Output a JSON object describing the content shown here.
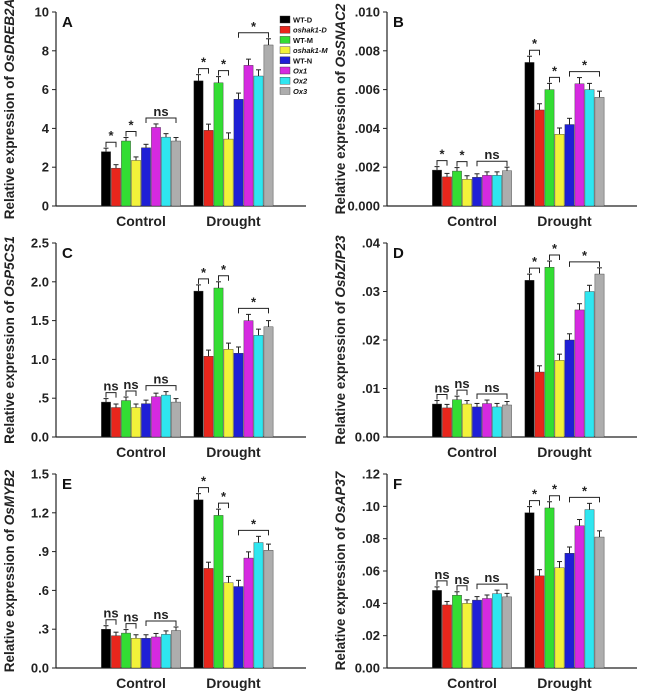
{
  "colors": [
    "#000000",
    "#e8261c",
    "#33dd33",
    "#f2f23a",
    "#1f1fd6",
    "#d52ae0",
    "#2fe6f0",
    "#adadad"
  ],
  "chart_data": [
    {
      "type": "bar",
      "panel": "A",
      "ylabel_prefix": "Relative expression of ",
      "gene": "OsDREB2A",
      "categories": [
        "Control",
        "Drought"
      ],
      "ylim": [
        0,
        10
      ],
      "yticks": [
        "0",
        "2",
        "4",
        "6",
        "8",
        "10"
      ],
      "legend": [
        "WT-D",
        "oshak1-D",
        "WT-M",
        "oshak1-M",
        "WT-N",
        "Ox1",
        "Ox2",
        "Ox3"
      ],
      "series": [
        {
          "name": "WT-D",
          "values": [
            2.8,
            6.45
          ]
        },
        {
          "name": "oshak1-D",
          "values": [
            1.95,
            3.9
          ]
        },
        {
          "name": "WT-M",
          "values": [
            3.35,
            6.35
          ]
        },
        {
          "name": "oshak1-M",
          "values": [
            2.35,
            3.45
          ]
        },
        {
          "name": "WT-N",
          "values": [
            3.0,
            5.5
          ]
        },
        {
          "name": "Ox1",
          "values": [
            4.05,
            7.25
          ]
        },
        {
          "name": "Ox2",
          "values": [
            3.55,
            6.7
          ]
        },
        {
          "name": "Ox3",
          "values": [
            3.35,
            8.3
          ]
        }
      ],
      "significance": [
        {
          "group": 0,
          "pair": "0-1",
          "label": "*"
        },
        {
          "group": 0,
          "pair": "2-3",
          "label": "*"
        },
        {
          "group": 0,
          "pair": "4-7",
          "label": "ns"
        },
        {
          "group": 1,
          "pair": "0-1",
          "label": "*"
        },
        {
          "group": 1,
          "pair": "2-3",
          "label": "*"
        },
        {
          "group": 1,
          "pair": "4-7",
          "label": "*"
        }
      ]
    },
    {
      "type": "bar",
      "panel": "B",
      "ylabel_prefix": "Relative expression of ",
      "gene": "OsSNAC2",
      "categories": [
        "Control",
        "Drought"
      ],
      "ylim": [
        0,
        0.01
      ],
      "yticks": [
        "0.000",
        ".002",
        ".004",
        ".006",
        ".008",
        ".010"
      ],
      "series": [
        {
          "name": "WT-D",
          "values": [
            0.00185,
            0.0074
          ]
        },
        {
          "name": "oshak1-D",
          "values": [
            0.0015,
            0.00495
          ]
        },
        {
          "name": "WT-M",
          "values": [
            0.0018,
            0.006
          ]
        },
        {
          "name": "oshak1-M",
          "values": [
            0.00138,
            0.0037
          ]
        },
        {
          "name": "WT-N",
          "values": [
            0.00148,
            0.0042
          ]
        },
        {
          "name": "Ox1",
          "values": [
            0.00158,
            0.0063
          ]
        },
        {
          "name": "Ox2",
          "values": [
            0.00158,
            0.006
          ]
        },
        {
          "name": "Ox3",
          "values": [
            0.00182,
            0.0056
          ]
        }
      ],
      "significance": [
        {
          "group": 0,
          "pair": "0-1",
          "label": "*"
        },
        {
          "group": 0,
          "pair": "2-3",
          "label": "*"
        },
        {
          "group": 0,
          "pair": "4-7",
          "label": "ns"
        },
        {
          "group": 1,
          "pair": "0-1",
          "label": "*"
        },
        {
          "group": 1,
          "pair": "2-3",
          "label": "*"
        },
        {
          "group": 1,
          "pair": "4-7",
          "label": "*"
        }
      ]
    },
    {
      "type": "bar",
      "panel": "C",
      "ylabel_prefix": "Relative expression of ",
      "gene": "OsP5CS1",
      "categories": [
        "Control",
        "Drought"
      ],
      "ylim": [
        0,
        2.5
      ],
      "yticks": [
        "0.0",
        ".5",
        "1.0",
        "1.5",
        "2.0",
        "2.5"
      ],
      "series": [
        {
          "name": "WT-D",
          "values": [
            0.45,
            1.88
          ]
        },
        {
          "name": "oshak1-D",
          "values": [
            0.38,
            1.04
          ]
        },
        {
          "name": "WT-M",
          "values": [
            0.47,
            1.92
          ]
        },
        {
          "name": "oshak1-M",
          "values": [
            0.38,
            1.13
          ]
        },
        {
          "name": "WT-N",
          "values": [
            0.43,
            1.08
          ]
        },
        {
          "name": "Ox1",
          "values": [
            0.52,
            1.5
          ]
        },
        {
          "name": "Ox2",
          "values": [
            0.54,
            1.31
          ]
        },
        {
          "name": "Ox3",
          "values": [
            0.45,
            1.42
          ]
        }
      ],
      "significance": [
        {
          "group": 0,
          "pair": "0-1",
          "label": "ns"
        },
        {
          "group": 0,
          "pair": "2-3",
          "label": "ns"
        },
        {
          "group": 0,
          "pair": "4-7",
          "label": "ns"
        },
        {
          "group": 1,
          "pair": "0-1",
          "label": "*"
        },
        {
          "group": 1,
          "pair": "2-3",
          "label": "*"
        },
        {
          "group": 1,
          "pair": "4-7",
          "label": "*"
        }
      ]
    },
    {
      "type": "bar",
      "panel": "D",
      "ylabel_prefix": "Relative expression of ",
      "gene": "OsbZIP23",
      "categories": [
        "Control",
        "Drought"
      ],
      "ylim": [
        0,
        0.04
      ],
      "yticks": [
        "0.00",
        ".01",
        ".02",
        ".03",
        ".04"
      ],
      "series": [
        {
          "name": "WT-D",
          "values": [
            0.0068,
            0.0323
          ]
        },
        {
          "name": "oshak1-D",
          "values": [
            0.006,
            0.0134
          ]
        },
        {
          "name": "WT-M",
          "values": [
            0.0077,
            0.035
          ]
        },
        {
          "name": "oshak1-M",
          "values": [
            0.0068,
            0.0158
          ]
        },
        {
          "name": "WT-N",
          "values": [
            0.0062,
            0.02
          ]
        },
        {
          "name": "Ox1",
          "values": [
            0.0069,
            0.0262
          ]
        },
        {
          "name": "Ox2",
          "values": [
            0.0062,
            0.03
          ]
        },
        {
          "name": "Ox3",
          "values": [
            0.0066,
            0.0336
          ]
        }
      ],
      "significance": [
        {
          "group": 0,
          "pair": "0-1",
          "label": "ns"
        },
        {
          "group": 0,
          "pair": "2-3",
          "label": "ns"
        },
        {
          "group": 0,
          "pair": "4-7",
          "label": "ns"
        },
        {
          "group": 1,
          "pair": "0-1",
          "label": "*"
        },
        {
          "group": 1,
          "pair": "2-3",
          "label": "*"
        },
        {
          "group": 1,
          "pair": "4-7",
          "label": "*"
        }
      ]
    },
    {
      "type": "bar",
      "panel": "E",
      "ylabel_prefix": "Relative expression of ",
      "gene": "OsMYB2",
      "categories": [
        "Control",
        "Drought"
      ],
      "ylim": [
        0,
        1.5
      ],
      "yticks": [
        "0.0",
        ".3",
        ".6",
        ".9",
        "1.2",
        "1.5"
      ],
      "series": [
        {
          "name": "WT-D",
          "values": [
            0.3,
            1.3
          ]
        },
        {
          "name": "oshak1-D",
          "values": [
            0.25,
            0.77
          ]
        },
        {
          "name": "WT-M",
          "values": [
            0.27,
            1.18
          ]
        },
        {
          "name": "oshak1-M",
          "values": [
            0.23,
            0.66
          ]
        },
        {
          "name": "WT-N",
          "values": [
            0.23,
            0.63
          ]
        },
        {
          "name": "Ox1",
          "values": [
            0.24,
            0.85
          ]
        },
        {
          "name": "Ox2",
          "values": [
            0.26,
            0.97
          ]
        },
        {
          "name": "Ox3",
          "values": [
            0.29,
            0.91
          ]
        }
      ],
      "significance": [
        {
          "group": 0,
          "pair": "0-1",
          "label": "ns"
        },
        {
          "group": 0,
          "pair": "2-3",
          "label": "ns"
        },
        {
          "group": 0,
          "pair": "4-7",
          "label": "ns"
        },
        {
          "group": 1,
          "pair": "0-1",
          "label": "*"
        },
        {
          "group": 1,
          "pair": "2-3",
          "label": "*"
        },
        {
          "group": 1,
          "pair": "4-7",
          "label": "*"
        }
      ]
    },
    {
      "type": "bar",
      "panel": "F",
      "ylabel_prefix": "Relative expression of ",
      "gene": "OsAP37",
      "categories": [
        "Control",
        "Drought"
      ],
      "ylim": [
        0,
        0.12
      ],
      "yticks": [
        "0.00",
        ".02",
        ".04",
        ".06",
        ".08",
        ".10",
        ".12"
      ],
      "series": [
        {
          "name": "WT-D",
          "values": [
            0.048,
            0.096
          ]
        },
        {
          "name": "oshak1-D",
          "values": [
            0.039,
            0.057
          ]
        },
        {
          "name": "WT-M",
          "values": [
            0.045,
            0.099
          ]
        },
        {
          "name": "oshak1-M",
          "values": [
            0.04,
            0.062
          ]
        },
        {
          "name": "WT-N",
          "values": [
            0.042,
            0.071
          ]
        },
        {
          "name": "Ox1",
          "values": [
            0.043,
            0.088
          ]
        },
        {
          "name": "Ox2",
          "values": [
            0.046,
            0.098
          ]
        },
        {
          "name": "Ox3",
          "values": [
            0.044,
            0.081
          ]
        }
      ],
      "significance": [
        {
          "group": 0,
          "pair": "0-1",
          "label": "ns"
        },
        {
          "group": 0,
          "pair": "2-3",
          "label": "ns"
        },
        {
          "group": 0,
          "pair": "4-7",
          "label": "ns"
        },
        {
          "group": 1,
          "pair": "0-1",
          "label": "*"
        },
        {
          "group": 1,
          "pair": "2-3",
          "label": "*"
        },
        {
          "group": 1,
          "pair": "4-7",
          "label": "*"
        }
      ]
    }
  ]
}
